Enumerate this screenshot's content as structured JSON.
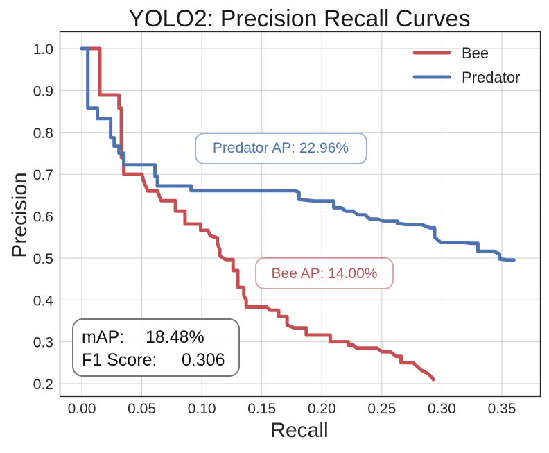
{
  "chart_data": {
    "type": "line",
    "title": "YOLO2: Precision Recall Curves",
    "xlabel": "Recall",
    "ylabel": "Precision",
    "xlim": [
      -0.018,
      0.38
    ],
    "ylim": [
      0.17,
      1.04
    ],
    "xticks": [
      "0.00",
      "0.05",
      "0.10",
      "0.15",
      "0.20",
      "0.25",
      "0.30",
      "0.35"
    ],
    "xtick_values": [
      0,
      0.05,
      0.1,
      0.15,
      0.2,
      0.25,
      0.3,
      0.35
    ],
    "yticks": [
      "0.2",
      "0.3",
      "0.4",
      "0.5",
      "0.6",
      "0.7",
      "0.8",
      "0.9",
      "1.0"
    ],
    "ytick_values": [
      0.2,
      0.3,
      0.4,
      0.5,
      0.6,
      0.7,
      0.8,
      0.9,
      1.0
    ],
    "grid": true,
    "legend_position": "top-right",
    "series": [
      {
        "name": "Bee",
        "color": "#c44e52",
        "points": [
          [
            0.0,
            1.0
          ],
          [
            0.015,
            1.0
          ],
          [
            0.015,
            0.889
          ],
          [
            0.031,
            0.889
          ],
          [
            0.031,
            0.858
          ],
          [
            0.033,
            0.858
          ],
          [
            0.033,
            0.74
          ],
          [
            0.035,
            0.74
          ],
          [
            0.035,
            0.7
          ],
          [
            0.05,
            0.7
          ],
          [
            0.052,
            0.68
          ],
          [
            0.055,
            0.66
          ],
          [
            0.063,
            0.66
          ],
          [
            0.066,
            0.637
          ],
          [
            0.078,
            0.637
          ],
          [
            0.078,
            0.612
          ],
          [
            0.086,
            0.612
          ],
          [
            0.086,
            0.581
          ],
          [
            0.099,
            0.581
          ],
          [
            0.099,
            0.566
          ],
          [
            0.105,
            0.566
          ],
          [
            0.107,
            0.553
          ],
          [
            0.113,
            0.548
          ],
          [
            0.113,
            0.535
          ],
          [
            0.115,
            0.52
          ],
          [
            0.115,
            0.505
          ],
          [
            0.12,
            0.496
          ],
          [
            0.126,
            0.496
          ],
          [
            0.126,
            0.47
          ],
          [
            0.13,
            0.47
          ],
          [
            0.13,
            0.43
          ],
          [
            0.135,
            0.43
          ],
          [
            0.135,
            0.41
          ],
          [
            0.137,
            0.4
          ],
          [
            0.137,
            0.383
          ],
          [
            0.154,
            0.383
          ],
          [
            0.157,
            0.375
          ],
          [
            0.164,
            0.375
          ],
          [
            0.164,
            0.36
          ],
          [
            0.171,
            0.36
          ],
          [
            0.171,
            0.34
          ],
          [
            0.177,
            0.333
          ],
          [
            0.187,
            0.333
          ],
          [
            0.187,
            0.316
          ],
          [
            0.207,
            0.316
          ],
          [
            0.207,
            0.3
          ],
          [
            0.222,
            0.3
          ],
          [
            0.222,
            0.292
          ],
          [
            0.226,
            0.292
          ],
          [
            0.229,
            0.285
          ],
          [
            0.246,
            0.285
          ],
          [
            0.25,
            0.276
          ],
          [
            0.257,
            0.276
          ],
          [
            0.262,
            0.265
          ],
          [
            0.266,
            0.265
          ],
          [
            0.266,
            0.25
          ],
          [
            0.276,
            0.25
          ],
          [
            0.283,
            0.232
          ],
          [
            0.289,
            0.223
          ],
          [
            0.293,
            0.21
          ]
        ]
      },
      {
        "name": "Predator",
        "color": "#4c72b0",
        "points": [
          [
            0.0,
            1.0
          ],
          [
            0.005,
            1.0
          ],
          [
            0.005,
            0.858
          ],
          [
            0.013,
            0.858
          ],
          [
            0.013,
            0.833
          ],
          [
            0.024,
            0.833
          ],
          [
            0.024,
            0.787
          ],
          [
            0.027,
            0.787
          ],
          [
            0.027,
            0.767
          ],
          [
            0.031,
            0.767
          ],
          [
            0.031,
            0.75
          ],
          [
            0.035,
            0.75
          ],
          [
            0.035,
            0.722
          ],
          [
            0.061,
            0.722
          ],
          [
            0.061,
            0.695
          ],
          [
            0.063,
            0.695
          ],
          [
            0.063,
            0.672
          ],
          [
            0.091,
            0.672
          ],
          [
            0.091,
            0.661
          ],
          [
            0.178,
            0.661
          ],
          [
            0.181,
            0.656
          ],
          [
            0.181,
            0.64
          ],
          [
            0.194,
            0.636
          ],
          [
            0.21,
            0.636
          ],
          [
            0.21,
            0.62
          ],
          [
            0.216,
            0.62
          ],
          [
            0.22,
            0.612
          ],
          [
            0.226,
            0.612
          ],
          [
            0.23,
            0.603
          ],
          [
            0.236,
            0.603
          ],
          [
            0.24,
            0.593
          ],
          [
            0.246,
            0.593
          ],
          [
            0.252,
            0.588
          ],
          [
            0.263,
            0.588
          ],
          [
            0.263,
            0.583
          ],
          [
            0.27,
            0.58
          ],
          [
            0.283,
            0.58
          ],
          [
            0.29,
            0.572
          ],
          [
            0.294,
            0.572
          ],
          [
            0.294,
            0.55
          ],
          [
            0.299,
            0.537
          ],
          [
            0.318,
            0.537
          ],
          [
            0.324,
            0.535
          ],
          [
            0.33,
            0.535
          ],
          [
            0.33,
            0.516
          ],
          [
            0.343,
            0.516
          ],
          [
            0.348,
            0.51
          ],
          [
            0.348,
            0.498
          ],
          [
            0.355,
            0.495
          ],
          [
            0.36,
            0.495
          ]
        ]
      }
    ],
    "annotations": [
      {
        "text": "Predator AP: 22.96%",
        "color": "#4c72b0"
      },
      {
        "text": "Bee AP: 14.00%",
        "color": "#c44e52"
      }
    ],
    "summary_box": {
      "line1_label": "mAP:",
      "line1_value": "18.48%",
      "line2_label": "F1 Score:",
      "line2_value": "0.306"
    }
  }
}
